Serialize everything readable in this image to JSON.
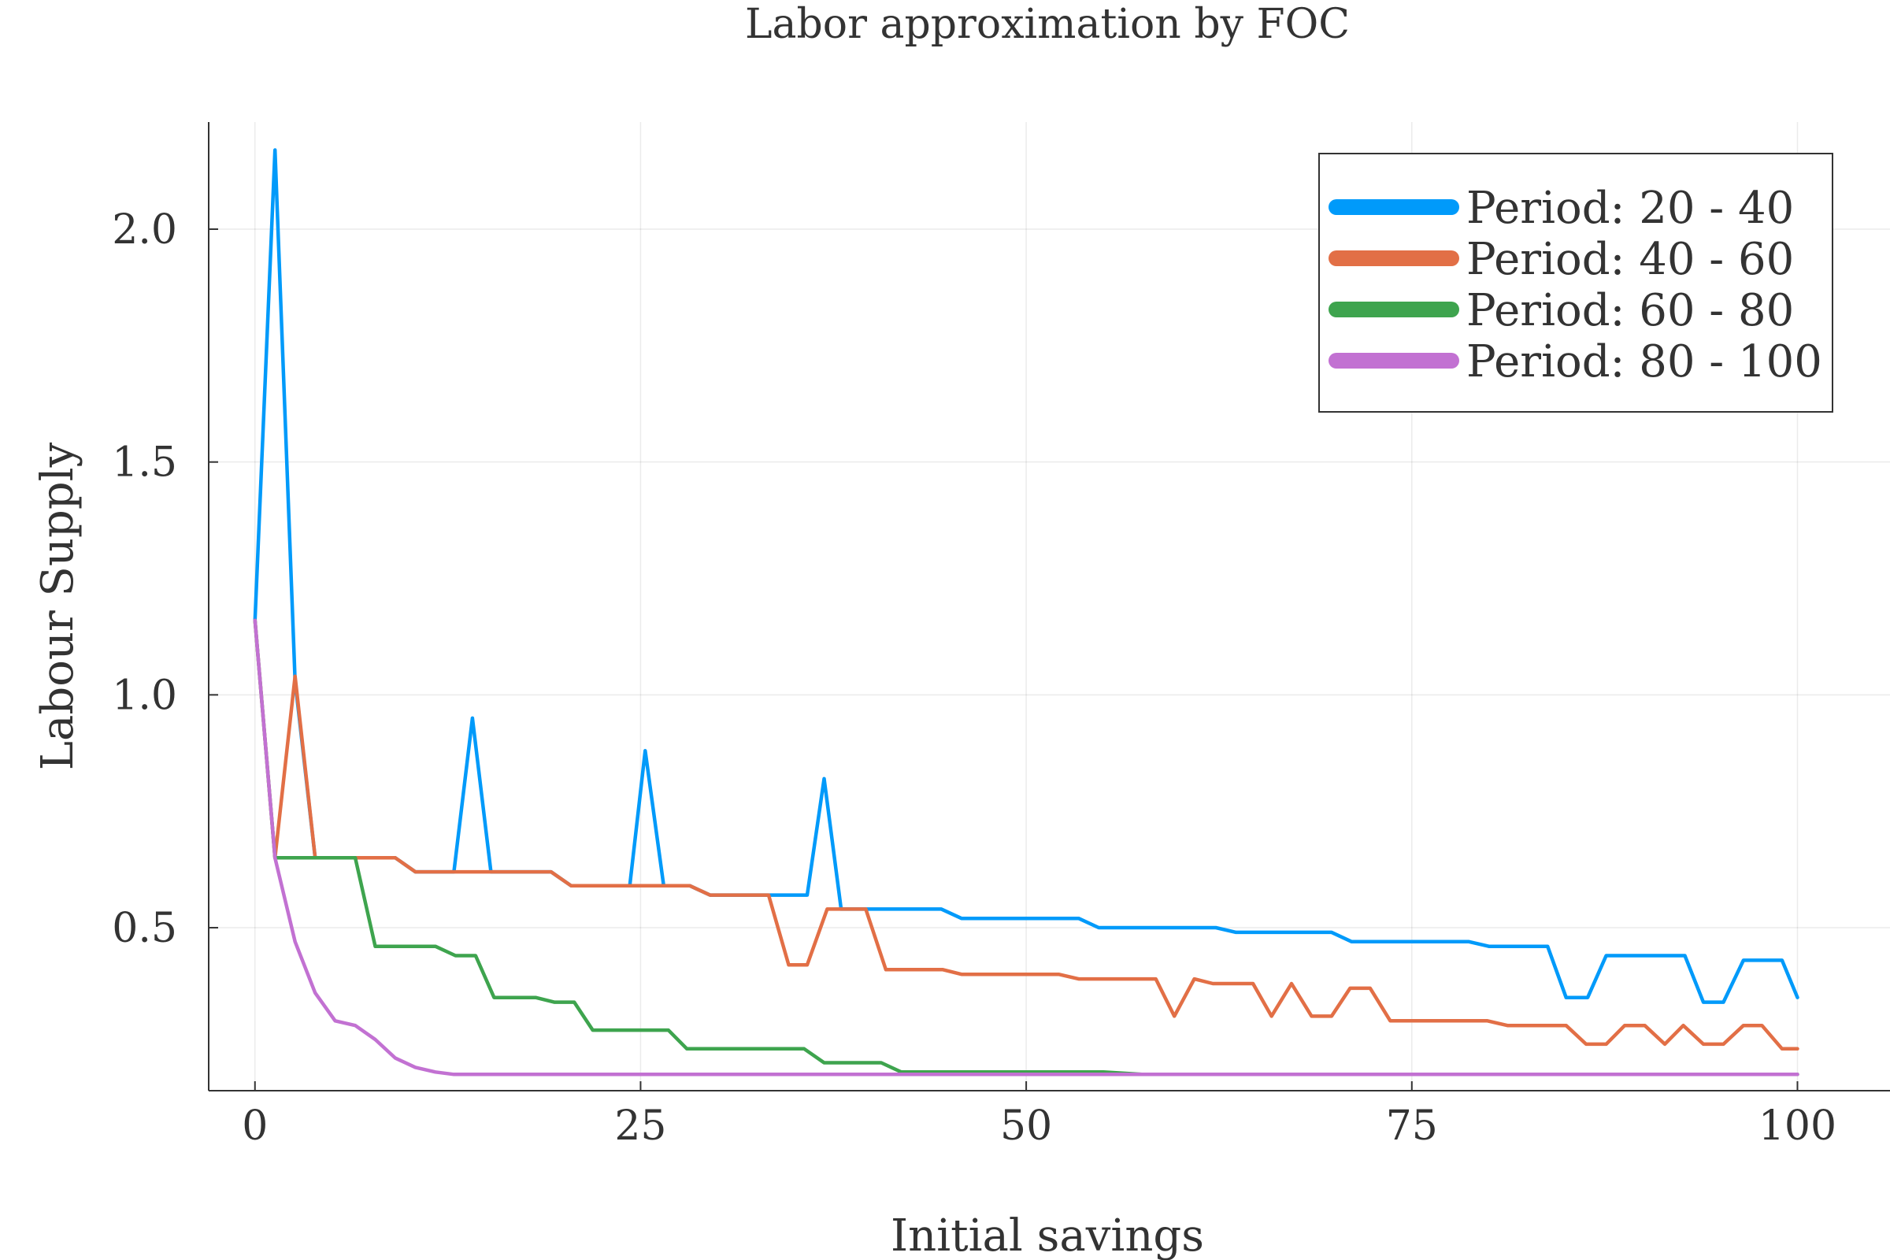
{
  "chart_data": {
    "type": "line",
    "title": "Labor approximation by FOC",
    "xlabel": "Initial savings",
    "ylabel": "Labour Supply",
    "xlim": [
      -3,
      106
    ],
    "ylim": [
      0.15,
      2.23
    ],
    "xticks": [
      0,
      25,
      50,
      75,
      100
    ],
    "xtick_labels": [
      "0",
      "25",
      "50",
      "75",
      "100"
    ],
    "yticks": [
      0.5,
      1.0,
      1.5,
      2.0
    ],
    "ytick_labels": [
      "0.5",
      "1.0",
      "1.5",
      "2.0"
    ],
    "grid": true,
    "legend_position": "top-right",
    "series": [
      {
        "name": "Period: 20 - 40",
        "color": "#009AFA",
        "points": [
          [
            0,
            1.16
          ],
          [
            1.3,
            2.17
          ],
          [
            2.6,
            1.03
          ],
          [
            3.9,
            0.65
          ],
          [
            6.5,
            0.65
          ],
          [
            9.1,
            0.65
          ],
          [
            10.4,
            0.62
          ],
          [
            12.9,
            0.62
          ],
          [
            14.1,
            0.95
          ],
          [
            15.3,
            0.62
          ],
          [
            19.2,
            0.62
          ],
          [
            20.5,
            0.59
          ],
          [
            24.3,
            0.59
          ],
          [
            25.3,
            0.88
          ],
          [
            26.5,
            0.59
          ],
          [
            28.2,
            0.59
          ],
          [
            29.5,
            0.57
          ],
          [
            35.8,
            0.57
          ],
          [
            36.9,
            0.82
          ],
          [
            38.0,
            0.54
          ],
          [
            44.5,
            0.54
          ],
          [
            45.8,
            0.52
          ],
          [
            53.4,
            0.52
          ],
          [
            54.7,
            0.5
          ],
          [
            62.3,
            0.5
          ],
          [
            63.6,
            0.49
          ],
          [
            69.8,
            0.49
          ],
          [
            71.1,
            0.47
          ],
          [
            78.7,
            0.47
          ],
          [
            80.0,
            0.46
          ],
          [
            83.8,
            0.46
          ],
          [
            85.0,
            0.35
          ],
          [
            86.4,
            0.35
          ],
          [
            87.6,
            0.44
          ],
          [
            92.7,
            0.44
          ],
          [
            93.9,
            0.34
          ],
          [
            95.2,
            0.34
          ],
          [
            96.5,
            0.43
          ],
          [
            99.0,
            0.43
          ],
          [
            100,
            0.35
          ]
        ]
      },
      {
        "name": "Period: 40 - 60",
        "color": "#E26F46",
        "points": [
          [
            0,
            1.16
          ],
          [
            1.3,
            0.65
          ],
          [
            2.6,
            1.04
          ],
          [
            3.9,
            0.65
          ],
          [
            9.1,
            0.65
          ],
          [
            10.4,
            0.62
          ],
          [
            19.2,
            0.62
          ],
          [
            20.5,
            0.59
          ],
          [
            28.2,
            0.59
          ],
          [
            29.5,
            0.57
          ],
          [
            33.3,
            0.57
          ],
          [
            34.6,
            0.42
          ],
          [
            35.8,
            0.42
          ],
          [
            37.1,
            0.54
          ],
          [
            39.6,
            0.54
          ],
          [
            40.9,
            0.41
          ],
          [
            44.6,
            0.41
          ],
          [
            45.8,
            0.4
          ],
          [
            52.1,
            0.4
          ],
          [
            53.4,
            0.39
          ],
          [
            58.4,
            0.39
          ],
          [
            59.6,
            0.31
          ],
          [
            60.9,
            0.39
          ],
          [
            62.1,
            0.38
          ],
          [
            64.7,
            0.38
          ],
          [
            65.9,
            0.31
          ],
          [
            67.2,
            0.38
          ],
          [
            68.5,
            0.31
          ],
          [
            69.8,
            0.31
          ],
          [
            71.0,
            0.37
          ],
          [
            72.3,
            0.37
          ],
          [
            73.6,
            0.3
          ],
          [
            79.9,
            0.3
          ],
          [
            81.2,
            0.29
          ],
          [
            85.0,
            0.29
          ],
          [
            86.3,
            0.25
          ],
          [
            87.6,
            0.25
          ],
          [
            88.8,
            0.29
          ],
          [
            90.1,
            0.29
          ],
          [
            91.4,
            0.25
          ],
          [
            92.6,
            0.29
          ],
          [
            93.9,
            0.25
          ],
          [
            95.2,
            0.25
          ],
          [
            96.5,
            0.29
          ],
          [
            97.7,
            0.29
          ],
          [
            99.0,
            0.24
          ],
          [
            100,
            0.24
          ]
        ]
      },
      {
        "name": "Period: 60 - 80",
        "color": "#3EA44E",
        "points": [
          [
            0,
            1.16
          ],
          [
            1.3,
            0.65
          ],
          [
            6.5,
            0.65
          ],
          [
            7.8,
            0.46
          ],
          [
            11.7,
            0.46
          ],
          [
            13.0,
            0.44
          ],
          [
            14.3,
            0.44
          ],
          [
            15.5,
            0.35
          ],
          [
            18.2,
            0.35
          ],
          [
            19.4,
            0.34
          ],
          [
            20.7,
            0.34
          ],
          [
            21.9,
            0.28
          ],
          [
            26.8,
            0.28
          ],
          [
            28.0,
            0.24
          ],
          [
            31.8,
            0.24
          ],
          [
            33.1,
            0.24
          ],
          [
            35.6,
            0.24
          ],
          [
            36.9,
            0.21
          ],
          [
            40.6,
            0.21
          ],
          [
            41.9,
            0.19
          ],
          [
            55.0,
            0.19
          ],
          [
            57.5,
            0.185
          ],
          [
            100,
            0.185
          ]
        ]
      },
      {
        "name": "Period: 80 - 100",
        "color": "#C271D2",
        "points": [
          [
            0,
            1.16
          ],
          [
            1.3,
            0.65
          ],
          [
            2.6,
            0.47
          ],
          [
            3.9,
            0.36
          ],
          [
            5.2,
            0.3
          ],
          [
            6.5,
            0.29
          ],
          [
            7.8,
            0.26
          ],
          [
            9.1,
            0.22
          ],
          [
            10.4,
            0.2
          ],
          [
            11.7,
            0.19
          ],
          [
            12.9,
            0.185
          ],
          [
            100,
            0.185
          ]
        ]
      }
    ]
  }
}
